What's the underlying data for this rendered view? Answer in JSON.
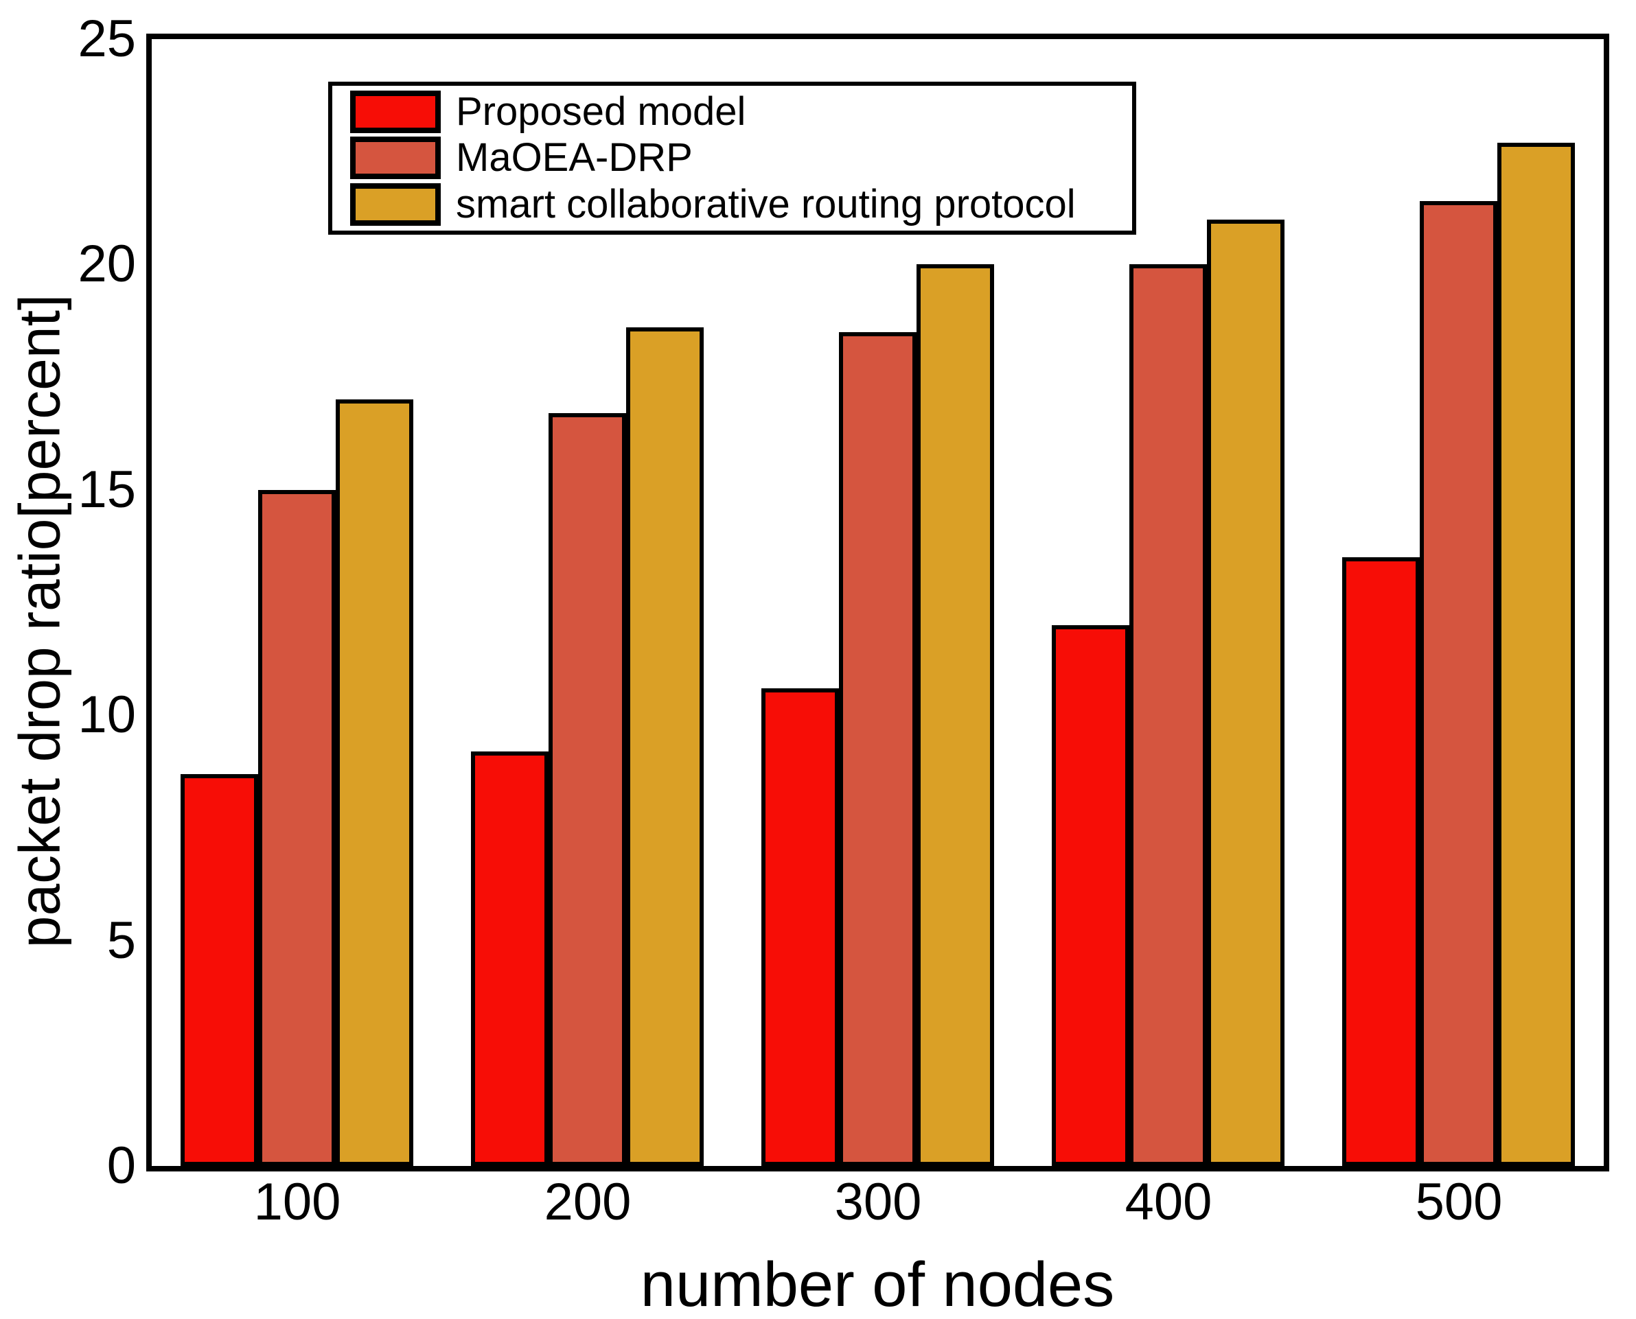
{
  "figure": {
    "background": "#ffffff",
    "axis_color": "#000000"
  },
  "chart_data": {
    "type": "bar",
    "title": "",
    "xlabel": "number of nodes",
    "ylabel": "packet drop ratio[percent]",
    "categories": [
      "100",
      "200",
      "300",
      "400",
      "500"
    ],
    "series": [
      {
        "name": "Proposed model",
        "color": "#F70D06",
        "values": [
          8.7,
          9.2,
          10.6,
          12.0,
          13.5
        ]
      },
      {
        "name": "MaOEA-DRP",
        "color": "#D5553F",
        "values": [
          15.0,
          16.7,
          18.5,
          20.0,
          21.4
        ]
      },
      {
        "name": "smart collaborative routing protocol",
        "color": "#DAA026",
        "values": [
          17.0,
          18.6,
          20.0,
          21.0,
          22.7
        ]
      }
    ],
    "ylim": [
      0,
      25
    ],
    "yticks": [
      0,
      5,
      10,
      15,
      20,
      25
    ],
    "grid": false,
    "legend_position": "upper-left-inside",
    "bar_edge_color": "#000000"
  }
}
